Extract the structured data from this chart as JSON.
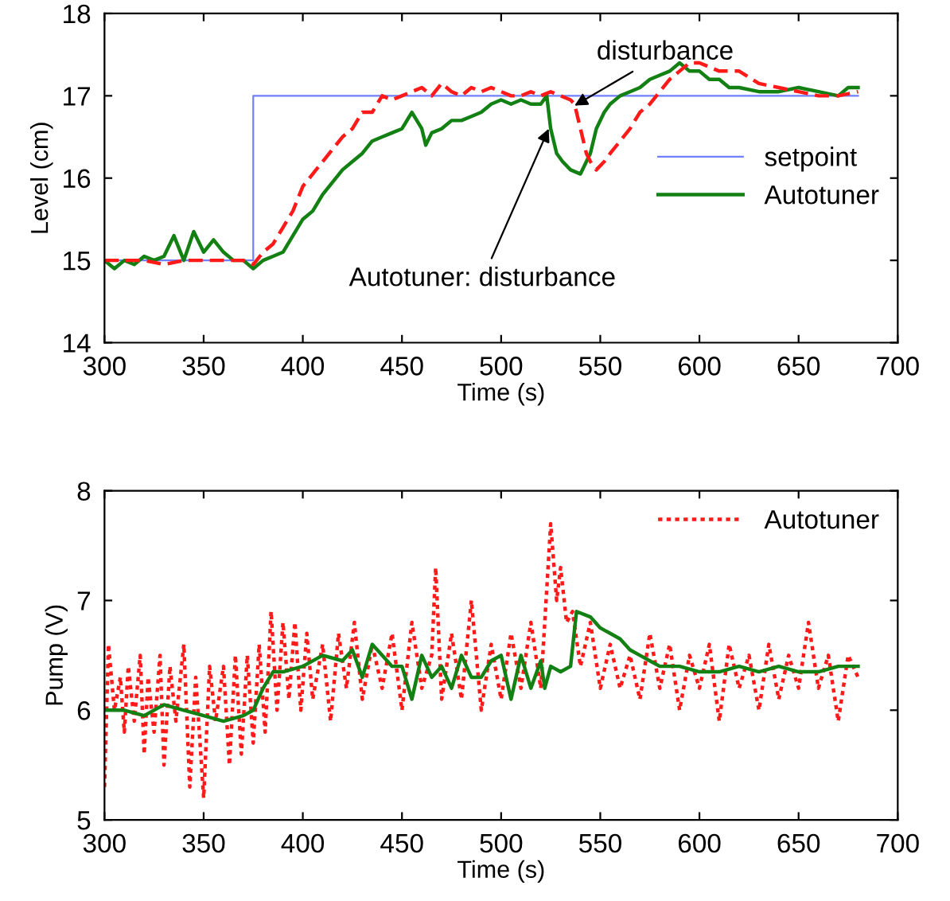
{
  "chart_data": [
    {
      "type": "line",
      "xlabel": "Time (s)",
      "ylabel": "Level (cm)",
      "xlim": [
        300,
        700
      ],
      "ylim": [
        14,
        18
      ],
      "xticks": [
        300,
        350,
        400,
        450,
        500,
        550,
        600,
        650,
        700
      ],
      "yticks": [
        14,
        15,
        16,
        17,
        18
      ],
      "grid": false,
      "legend": "right",
      "annotations": [
        {
          "text": "Autotuner: disturbance",
          "x": 524,
          "y": 16.6
        },
        {
          "text": "disturbance",
          "x": 537,
          "y": 16.88
        }
      ],
      "series": [
        {
          "name": "setpoint",
          "color": "#7080ff",
          "line_style": "solid",
          "x": [
            300,
            375,
            375,
            680
          ],
          "values": [
            15,
            15,
            17,
            17
          ]
        },
        {
          "name": "Autotuner",
          "color": "#138013",
          "line_style": "solid",
          "x": [
            300,
            305,
            310,
            315,
            320,
            325,
            330,
            335,
            340,
            345,
            350,
            355,
            360,
            365,
            370,
            375,
            380,
            385,
            390,
            395,
            400,
            405,
            410,
            415,
            420,
            425,
            430,
            435,
            440,
            445,
            450,
            455,
            460,
            462,
            465,
            470,
            475,
            480,
            485,
            490,
            495,
            500,
            505,
            510,
            515,
            520,
            523,
            525,
            528,
            531,
            535,
            540,
            543,
            545,
            548,
            552,
            555,
            560,
            565,
            570,
            575,
            580,
            585,
            590,
            595,
            600,
            605,
            610,
            615,
            620,
            630,
            640,
            650,
            660,
            670,
            675,
            680
          ],
          "values": [
            15.0,
            14.9,
            15.0,
            14.95,
            15.05,
            15.0,
            15.05,
            15.3,
            15.0,
            15.35,
            15.1,
            15.25,
            15.1,
            15.0,
            15.0,
            14.9,
            15.0,
            15.05,
            15.1,
            15.3,
            15.5,
            15.6,
            15.8,
            15.95,
            16.1,
            16.2,
            16.3,
            16.45,
            16.5,
            16.55,
            16.6,
            16.8,
            16.6,
            16.4,
            16.55,
            16.6,
            16.7,
            16.7,
            16.75,
            16.8,
            16.9,
            16.95,
            16.9,
            16.95,
            16.9,
            16.9,
            17.0,
            16.6,
            16.3,
            16.2,
            16.1,
            16.05,
            16.2,
            16.3,
            16.6,
            16.8,
            16.9,
            17.0,
            17.05,
            17.1,
            17.2,
            17.25,
            17.3,
            17.4,
            17.3,
            17.3,
            17.2,
            17.2,
            17.1,
            17.1,
            17.05,
            17.05,
            17.1,
            17.05,
            17.0,
            17.1,
            17.1
          ]
        },
        {
          "name": null,
          "color": "#ff1a1a",
          "line_style": "dashed",
          "x": [
            300,
            310,
            320,
            330,
            340,
            350,
            360,
            370,
            375,
            380,
            385,
            390,
            395,
            400,
            405,
            410,
            415,
            420,
            425,
            430,
            435,
            440,
            445,
            450,
            455,
            460,
            465,
            470,
            475,
            480,
            485,
            490,
            495,
            500,
            505,
            510,
            515,
            520,
            525,
            530,
            535,
            537,
            540,
            543,
            545,
            548,
            552,
            555,
            560,
            565,
            570,
            575,
            580,
            585,
            590,
            595,
            600,
            605,
            610,
            620,
            630,
            640,
            650,
            660,
            670,
            680
          ],
          "values": [
            15.0,
            15.0,
            15.0,
            14.95,
            15.0,
            15.0,
            15.0,
            15.0,
            14.95,
            15.1,
            15.2,
            15.4,
            15.6,
            15.9,
            16.05,
            16.2,
            16.35,
            16.5,
            16.6,
            16.8,
            16.8,
            17.0,
            16.95,
            17.0,
            17.05,
            17.1,
            17.0,
            17.15,
            17.05,
            17.0,
            17.1,
            17.05,
            17.1,
            17.05,
            17.0,
            17.0,
            17.05,
            17.0,
            17.05,
            17.0,
            16.95,
            16.9,
            16.6,
            16.3,
            16.2,
            16.1,
            16.2,
            16.3,
            16.45,
            16.6,
            16.8,
            16.9,
            17.05,
            17.2,
            17.3,
            17.4,
            17.4,
            17.35,
            17.3,
            17.3,
            17.15,
            17.1,
            17.05,
            17.0,
            17.0,
            17.05
          ]
        }
      ]
    },
    {
      "type": "line",
      "xlabel": "Time (s)",
      "ylabel": "Pump (V)",
      "xlim": [
        300,
        700
      ],
      "ylim": [
        5,
        8
      ],
      "xticks": [
        300,
        350,
        400,
        450,
        500,
        550,
        600,
        650,
        700
      ],
      "yticks": [
        5,
        6,
        7,
        8
      ],
      "grid": false,
      "legend": "top right",
      "series": [
        {
          "name": "Autotuner",
          "color": "#ff1a1a",
          "line_style": "dotted",
          "x": [
            300,
            302,
            305,
            308,
            310,
            312,
            315,
            318,
            320,
            322,
            325,
            328,
            330,
            333,
            336,
            340,
            343,
            346,
            350,
            353,
            356,
            360,
            363,
            366,
            369,
            372,
            375,
            378,
            381,
            384,
            387,
            390,
            393,
            396,
            399,
            402,
            405,
            410,
            414,
            418,
            422,
            426,
            430,
            435,
            440,
            445,
            450,
            455,
            460,
            465,
            467,
            470,
            475,
            480,
            485,
            490,
            495,
            500,
            505,
            510,
            515,
            520,
            525,
            528,
            530,
            533,
            536,
            540,
            545,
            550,
            555,
            560,
            565,
            570,
            575,
            580,
            585,
            590,
            595,
            600,
            605,
            610,
            615,
            620,
            625,
            630,
            635,
            640,
            645,
            650,
            655,
            660,
            665,
            670,
            675,
            680
          ],
          "values": [
            5.3,
            6.6,
            6.0,
            6.3,
            5.8,
            6.4,
            5.9,
            6.5,
            5.6,
            6.3,
            5.8,
            6.5,
            5.5,
            6.4,
            5.9,
            6.6,
            5.3,
            6.3,
            5.2,
            6.4,
            5.9,
            6.4,
            5.5,
            6.5,
            5.6,
            6.5,
            5.7,
            6.6,
            5.8,
            6.9,
            6.0,
            6.8,
            6.1,
            6.8,
            6.0,
            6.7,
            6.1,
            6.6,
            5.9,
            6.7,
            6.2,
            6.8,
            6.1,
            6.6,
            6.2,
            6.7,
            6.0,
            6.8,
            6.2,
            6.5,
            7.3,
            6.1,
            6.7,
            6.1,
            7.0,
            6.0,
            6.6,
            6.1,
            6.7,
            6.2,
            6.8,
            6.2,
            7.7,
            7.0,
            7.3,
            6.8,
            6.9,
            6.4,
            6.8,
            6.2,
            6.6,
            6.2,
            6.5,
            6.1,
            6.7,
            6.2,
            6.6,
            6.0,
            6.5,
            6.2,
            6.6,
            5.9,
            6.6,
            6.2,
            6.5,
            6.0,
            6.6,
            6.1,
            6.5,
            6.2,
            6.8,
            6.2,
            6.5,
            5.9,
            6.5,
            6.3
          ]
        },
        {
          "name": null,
          "color": "#138013",
          "line_style": "solid",
          "x": [
            300,
            310,
            320,
            330,
            340,
            350,
            360,
            370,
            375,
            380,
            385,
            390,
            400,
            410,
            420,
            425,
            430,
            435,
            440,
            445,
            450,
            455,
            460,
            465,
            470,
            475,
            480,
            485,
            490,
            495,
            500,
            505,
            510,
            515,
            520,
            522,
            525,
            530,
            535,
            538,
            545,
            550,
            555,
            560,
            565,
            570,
            575,
            580,
            590,
            600,
            610,
            620,
            630,
            640,
            650,
            660,
            670,
            680
          ],
          "values": [
            6.0,
            6.0,
            5.95,
            6.05,
            6.0,
            5.95,
            5.9,
            5.95,
            6.0,
            6.2,
            6.35,
            6.35,
            6.4,
            6.5,
            6.45,
            6.55,
            6.3,
            6.6,
            6.5,
            6.4,
            6.4,
            6.1,
            6.5,
            6.3,
            6.4,
            6.2,
            6.5,
            6.3,
            6.3,
            6.45,
            6.5,
            6.1,
            6.5,
            6.2,
            6.45,
            6.2,
            6.4,
            6.35,
            6.4,
            6.9,
            6.85,
            6.75,
            6.7,
            6.65,
            6.55,
            6.5,
            6.45,
            6.4,
            6.4,
            6.35,
            6.35,
            6.4,
            6.35,
            6.4,
            6.35,
            6.35,
            6.4,
            6.4
          ]
        }
      ]
    }
  ]
}
